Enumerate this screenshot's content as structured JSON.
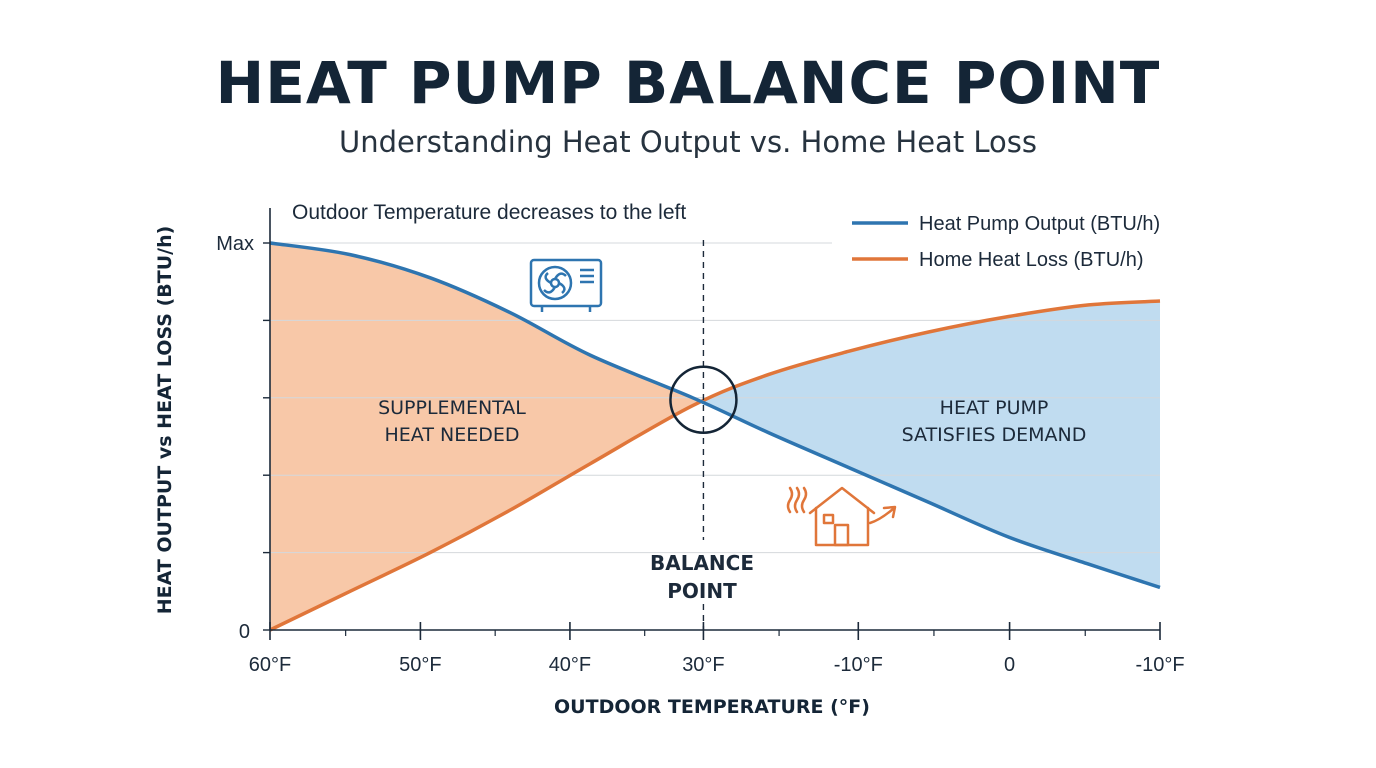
{
  "title": "HEAT PUMP BALANCE POINT",
  "subtitle": "Understanding Heat Output vs. Home Heat Loss",
  "chart_data": {
    "type": "line",
    "xlabel": "OUTDOOR TEMPERATURE (°F)",
    "ylabel": "HEAT OUTPUT vs HEAT LOSS (BTU/h)",
    "x_tick_labels": [
      "60°F",
      "50°F",
      "40°F",
      "30°F",
      "-10°F",
      "0",
      "-10°F"
    ],
    "y_tick_labels": {
      "top": "Max",
      "bottom": "0"
    },
    "annotation_top": "Outdoor Temperature decreases to the left",
    "series": [
      {
        "name": "Heat Pump Output (BTU/h)",
        "color": "#2e75b0",
        "values": [
          1.0,
          0.97,
          0.91,
          0.82,
          0.71,
          0.6,
          0.51,
          0.42,
          0.33,
          0.24,
          0.17,
          0.11
        ]
      },
      {
        "name": "Home Heat Loss (BTU/h)",
        "color": "#e0763a",
        "values": [
          0.0,
          0.1,
          0.2,
          0.31,
          0.43,
          0.58,
          0.66,
          0.72,
          0.77,
          0.81,
          0.84,
          0.85
        ]
      }
    ],
    "x_positions": [
      0,
      0.09,
      0.18,
      0.27,
      0.36,
      0.475,
      0.56,
      0.65,
      0.74,
      0.83,
      0.92,
      1.0
    ],
    "ylim": [
      0,
      1
    ],
    "regions": [
      {
        "label_lines": [
          "SUPPLEMENTAL",
          "HEAT NEEDED"
        ],
        "fill": "#f8c8a8"
      },
      {
        "label_lines": [
          "HEAT PUMP",
          "SATISFIES DEMAND"
        ],
        "fill": "#c0dcf0"
      }
    ],
    "balance_point": {
      "label_lines": [
        "BALANCE",
        "POINT"
      ],
      "x": 0.487,
      "y": 0.595
    },
    "grid": true,
    "legend_position": "top-right"
  },
  "icons": [
    "heat-pump-unit-icon",
    "house-heat-loss-icon"
  ]
}
